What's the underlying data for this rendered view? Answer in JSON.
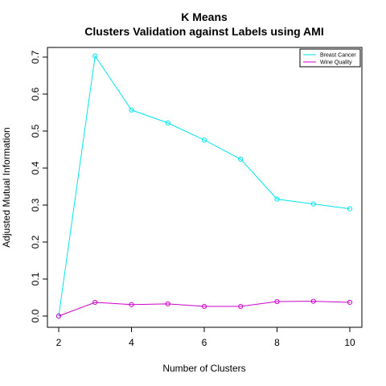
{
  "chart_data": {
    "type": "line",
    "title": "K Means",
    "subtitle": "Clusters Validation against Labels using AMI",
    "xlabel": "Number of Clusters",
    "ylabel": "Adjusted Mutual Information",
    "x": [
      2,
      3,
      4,
      5,
      6,
      7,
      8,
      9,
      10
    ],
    "xlim": [
      2,
      10
    ],
    "ylim": [
      0,
      0.7
    ],
    "xticks": [
      "2",
      "4",
      "6",
      "8",
      "10"
    ],
    "yticks": [
      "0.0",
      "0.1",
      "0.2",
      "0.3",
      "0.4",
      "0.5",
      "0.6",
      "0.7"
    ],
    "grid": false,
    "legend_position": "top-right",
    "series": [
      {
        "name": "Breast Cancer",
        "color": "#00e5ee",
        "values": [
          0.0,
          0.703,
          0.557,
          0.522,
          0.476,
          0.424,
          0.316,
          0.303,
          0.29
        ]
      },
      {
        "name": "Wine Quality",
        "color": "#cc00cc",
        "values": [
          0.0,
          0.037,
          0.031,
          0.033,
          0.026,
          0.026,
          0.039,
          0.04,
          0.037
        ]
      }
    ]
  }
}
